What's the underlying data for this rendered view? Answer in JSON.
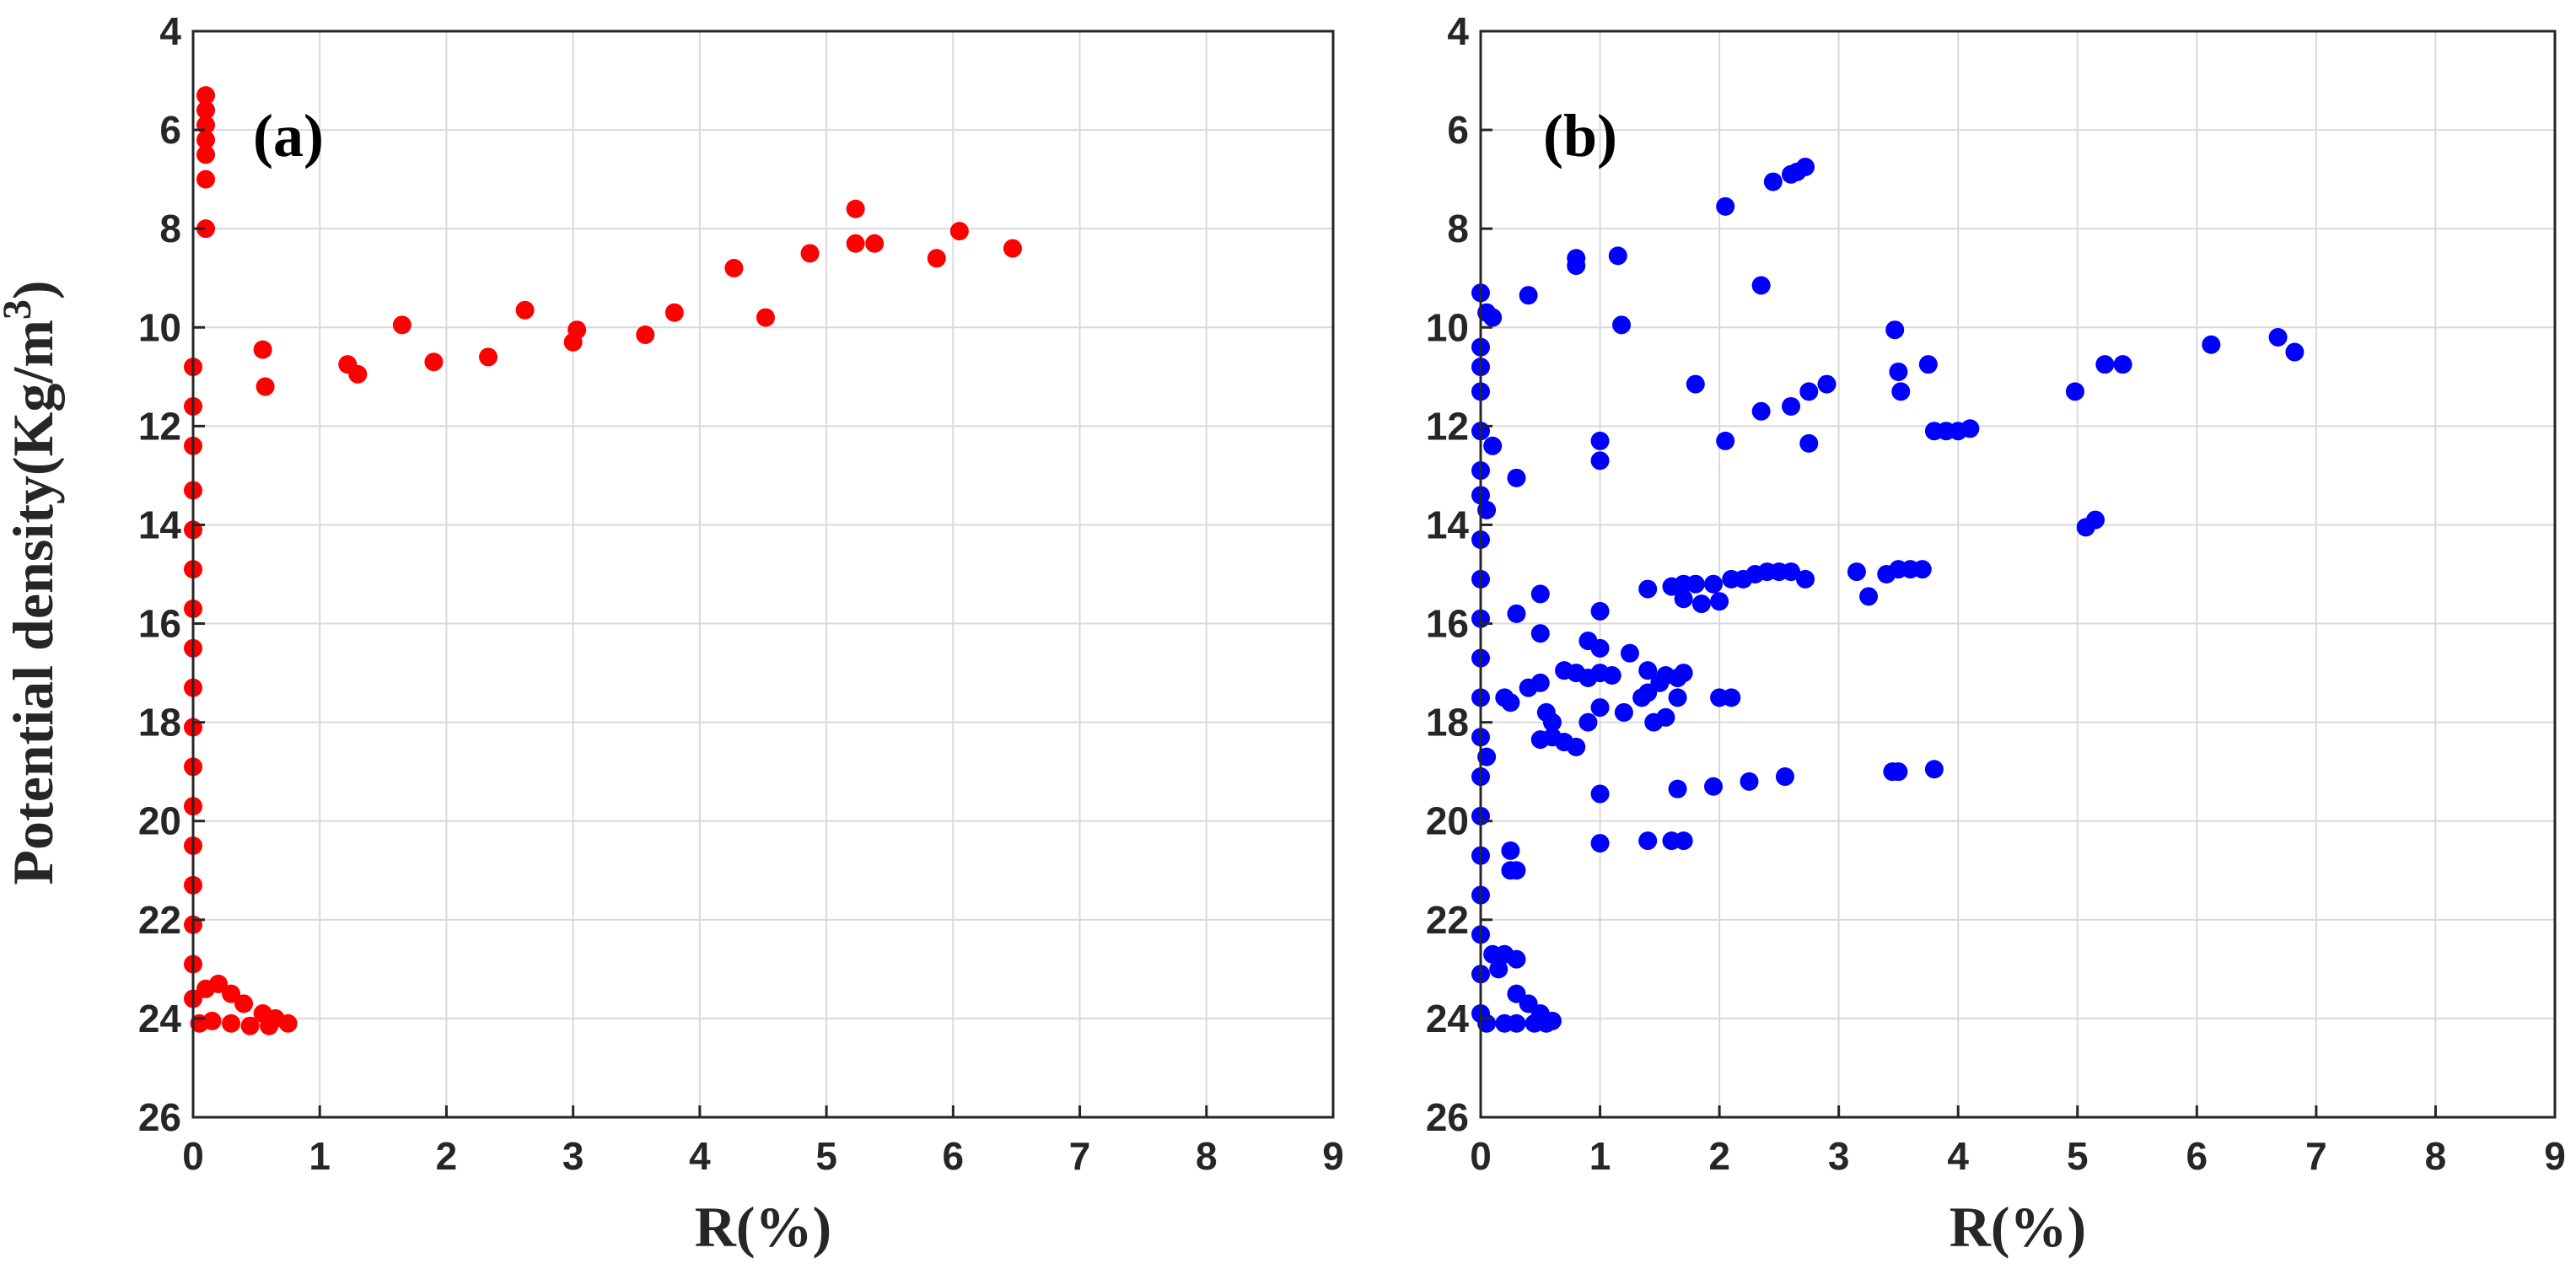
{
  "chart_data": [
    {
      "panel_label": "(a)",
      "type": "scatter",
      "xlabel": "R(%)",
      "ylabel": "Potential density(Kg/m",
      "ylabel_superscript": "3",
      "ylabel_close": ")",
      "xlim": [
        0,
        9
      ],
      "ylim": [
        4,
        26
      ],
      "y_reversed": true,
      "grid": true,
      "xticks": [
        "0",
        "1",
        "2",
        "3",
        "4",
        "5",
        "6",
        "7",
        "8",
        "9"
      ],
      "yticks": [
        "4",
        "6",
        "8",
        "10",
        "12",
        "14",
        "16",
        "18",
        "20",
        "22",
        "24",
        "26"
      ],
      "color": "#ff0000",
      "points": [
        [
          0.1,
          5.3
        ],
        [
          0.1,
          5.6
        ],
        [
          0.1,
          5.9
        ],
        [
          0.1,
          6.2
        ],
        [
          0.1,
          6.5
        ],
        [
          0.1,
          7.0
        ],
        [
          0.1,
          8.0
        ],
        [
          0.0,
          10.8
        ],
        [
          0.55,
          10.45
        ],
        [
          0.57,
          11.2
        ],
        [
          1.22,
          10.75
        ],
        [
          1.3,
          10.95
        ],
        [
          1.65,
          9.95
        ],
        [
          1.9,
          10.7
        ],
        [
          2.33,
          10.6
        ],
        [
          2.62,
          9.65
        ],
        [
          3.0,
          10.3
        ],
        [
          3.03,
          10.05
        ],
        [
          3.57,
          10.15
        ],
        [
          3.8,
          9.7
        ],
        [
          4.27,
          8.8
        ],
        [
          4.52,
          9.8
        ],
        [
          4.87,
          8.5
        ],
        [
          5.23,
          7.6
        ],
        [
          5.23,
          8.3
        ],
        [
          5.38,
          8.3
        ],
        [
          5.87,
          8.6
        ],
        [
          6.05,
          8.05
        ],
        [
          6.47,
          8.4
        ],
        [
          0.0,
          11.6
        ],
        [
          0.0,
          12.4
        ],
        [
          0.0,
          13.3
        ],
        [
          0.0,
          14.1
        ],
        [
          0.0,
          14.9
        ],
        [
          0.0,
          15.7
        ],
        [
          0.0,
          16.5
        ],
        [
          0.0,
          17.3
        ],
        [
          0.0,
          18.1
        ],
        [
          0.0,
          18.9
        ],
        [
          0.0,
          19.7
        ],
        [
          0.0,
          20.5
        ],
        [
          0.0,
          21.3
        ],
        [
          0.0,
          22.1
        ],
        [
          0.0,
          22.9
        ],
        [
          0.0,
          23.6
        ],
        [
          0.1,
          23.4
        ],
        [
          0.2,
          23.3
        ],
        [
          0.3,
          23.5
        ],
        [
          0.4,
          23.7
        ],
        [
          0.55,
          23.9
        ],
        [
          0.65,
          24.0
        ],
        [
          0.75,
          24.1
        ],
        [
          0.15,
          24.05
        ],
        [
          0.3,
          24.1
        ],
        [
          0.45,
          24.15
        ],
        [
          0.6,
          24.15
        ],
        [
          0.05,
          24.1
        ]
      ]
    },
    {
      "panel_label": "(b)",
      "type": "scatter",
      "xlabel": "R(%)",
      "xlim": [
        0,
        9
      ],
      "ylim": [
        4,
        26
      ],
      "y_reversed": true,
      "grid": true,
      "xticks": [
        "0",
        "1",
        "2",
        "3",
        "4",
        "5",
        "6",
        "7",
        "8",
        "9"
      ],
      "yticks": [
        "4",
        "6",
        "8",
        "10",
        "12",
        "14",
        "16",
        "18",
        "20",
        "22",
        "24",
        "26"
      ],
      "color": "#0000ff",
      "points": [
        [
          0.0,
          9.3
        ],
        [
          0.05,
          9.7
        ],
        [
          0.1,
          9.8
        ],
        [
          0.0,
          10.4
        ],
        [
          0.0,
          10.8
        ],
        [
          0.0,
          11.3
        ],
        [
          0.0,
          12.1
        ],
        [
          0.1,
          12.4
        ],
        [
          0.0,
          12.9
        ],
        [
          0.0,
          13.4
        ],
        [
          0.05,
          13.7
        ],
        [
          0.3,
          13.05
        ],
        [
          0.4,
          9.35
        ],
        [
          0.8,
          8.6
        ],
        [
          0.8,
          8.75
        ],
        [
          1.15,
          8.55
        ],
        [
          1.18,
          9.95
        ],
        [
          1.0,
          12.3
        ],
        [
          1.0,
          12.7
        ],
        [
          2.05,
          7.55
        ],
        [
          2.35,
          9.15
        ],
        [
          2.45,
          7.05
        ],
        [
          2.6,
          6.9
        ],
        [
          2.65,
          6.85
        ],
        [
          2.72,
          6.75
        ],
        [
          2.35,
          11.7
        ],
        [
          2.05,
          12.3
        ],
        [
          2.6,
          11.6
        ],
        [
          2.75,
          12.35
        ],
        [
          2.75,
          11.3
        ],
        [
          2.9,
          11.15
        ],
        [
          1.8,
          11.15
        ],
        [
          3.47,
          10.05
        ],
        [
          3.5,
          10.9
        ],
        [
          3.52,
          11.3
        ],
        [
          3.75,
          10.75
        ],
        [
          3.8,
          12.1
        ],
        [
          3.9,
          12.1
        ],
        [
          4.0,
          12.1
        ],
        [
          4.1,
          12.05
        ],
        [
          4.98,
          11.3
        ],
        [
          5.23,
          10.75
        ],
        [
          5.38,
          10.75
        ],
        [
          5.07,
          14.05
        ],
        [
          5.15,
          13.9
        ],
        [
          6.12,
          10.35
        ],
        [
          6.68,
          10.2
        ],
        [
          6.82,
          10.5
        ],
        [
          1.4,
          15.3
        ],
        [
          1.6,
          15.25
        ],
        [
          1.7,
          15.2
        ],
        [
          1.8,
          15.2
        ],
        [
          1.95,
          15.2
        ],
        [
          2.1,
          15.1
        ],
        [
          2.2,
          15.1
        ],
        [
          2.3,
          15.0
        ],
        [
          2.4,
          14.95
        ],
        [
          2.5,
          14.95
        ],
        [
          2.6,
          14.95
        ],
        [
          2.72,
          15.1
        ],
        [
          1.7,
          15.5
        ],
        [
          1.85,
          15.6
        ],
        [
          2.0,
          15.55
        ],
        [
          3.15,
          14.95
        ],
        [
          3.25,
          15.45
        ],
        [
          3.4,
          15.0
        ],
        [
          3.5,
          14.9
        ],
        [
          3.6,
          14.9
        ],
        [
          3.7,
          14.9
        ],
        [
          0.5,
          15.4
        ],
        [
          0.3,
          15.8
        ],
        [
          0.5,
          16.2
        ],
        [
          1.0,
          15.75
        ],
        [
          0.9,
          16.35
        ],
        [
          1.0,
          16.5
        ],
        [
          1.25,
          16.6
        ],
        [
          0.7,
          16.95
        ],
        [
          0.8,
          17.0
        ],
        [
          0.9,
          17.1
        ],
        [
          1.0,
          17.0
        ],
        [
          1.1,
          17.05
        ],
        [
          1.4,
          16.95
        ],
        [
          1.5,
          17.2
        ],
        [
          1.55,
          17.05
        ],
        [
          1.65,
          17.1
        ],
        [
          1.7,
          17.0
        ],
        [
          0.2,
          17.5
        ],
        [
          0.25,
          17.6
        ],
        [
          0.4,
          17.3
        ],
        [
          0.5,
          17.2
        ],
        [
          0.55,
          17.8
        ],
        [
          0.6,
          18.0
        ],
        [
          0.5,
          18.35
        ],
        [
          0.6,
          18.3
        ],
        [
          0.7,
          18.4
        ],
        [
          0.8,
          18.5
        ],
        [
          0.9,
          18.0
        ],
        [
          1.0,
          17.7
        ],
        [
          1.2,
          17.8
        ],
        [
          1.35,
          17.5
        ],
        [
          1.4,
          17.4
        ],
        [
          1.45,
          18.0
        ],
        [
          1.55,
          17.9
        ],
        [
          1.65,
          17.5
        ],
        [
          2.0,
          17.5
        ],
        [
          2.1,
          17.5
        ],
        [
          0.05,
          18.7
        ],
        [
          1.0,
          19.45
        ],
        [
          1.65,
          19.35
        ],
        [
          1.95,
          19.3
        ],
        [
          2.25,
          19.2
        ],
        [
          2.55,
          19.1
        ],
        [
          3.45,
          19.0
        ],
        [
          3.5,
          19.0
        ],
        [
          3.8,
          18.95
        ],
        [
          1.0,
          20.45
        ],
        [
          1.4,
          20.4
        ],
        [
          1.6,
          20.4
        ],
        [
          1.7,
          20.4
        ],
        [
          0.25,
          20.6
        ],
        [
          0.25,
          21.0
        ],
        [
          0.3,
          21.0
        ],
        [
          0.0,
          14.3
        ],
        [
          0.0,
          15.1
        ],
        [
          0.0,
          15.9
        ],
        [
          0.0,
          16.7
        ],
        [
          0.0,
          17.5
        ],
        [
          0.0,
          18.3
        ],
        [
          0.0,
          19.1
        ],
        [
          0.0,
          19.9
        ],
        [
          0.0,
          20.7
        ],
        [
          0.0,
          21.5
        ],
        [
          0.0,
          22.3
        ],
        [
          0.0,
          23.1
        ],
        [
          0.0,
          23.9
        ],
        [
          0.1,
          22.7
        ],
        [
          0.2,
          22.7
        ],
        [
          0.3,
          22.8
        ],
        [
          0.15,
          23.0
        ],
        [
          0.3,
          23.5
        ],
        [
          0.4,
          23.7
        ],
        [
          0.5,
          23.9
        ],
        [
          0.6,
          24.05
        ],
        [
          0.2,
          24.1
        ],
        [
          0.3,
          24.1
        ],
        [
          0.45,
          24.1
        ],
        [
          0.55,
          24.1
        ],
        [
          0.05,
          24.1
        ]
      ]
    }
  ]
}
